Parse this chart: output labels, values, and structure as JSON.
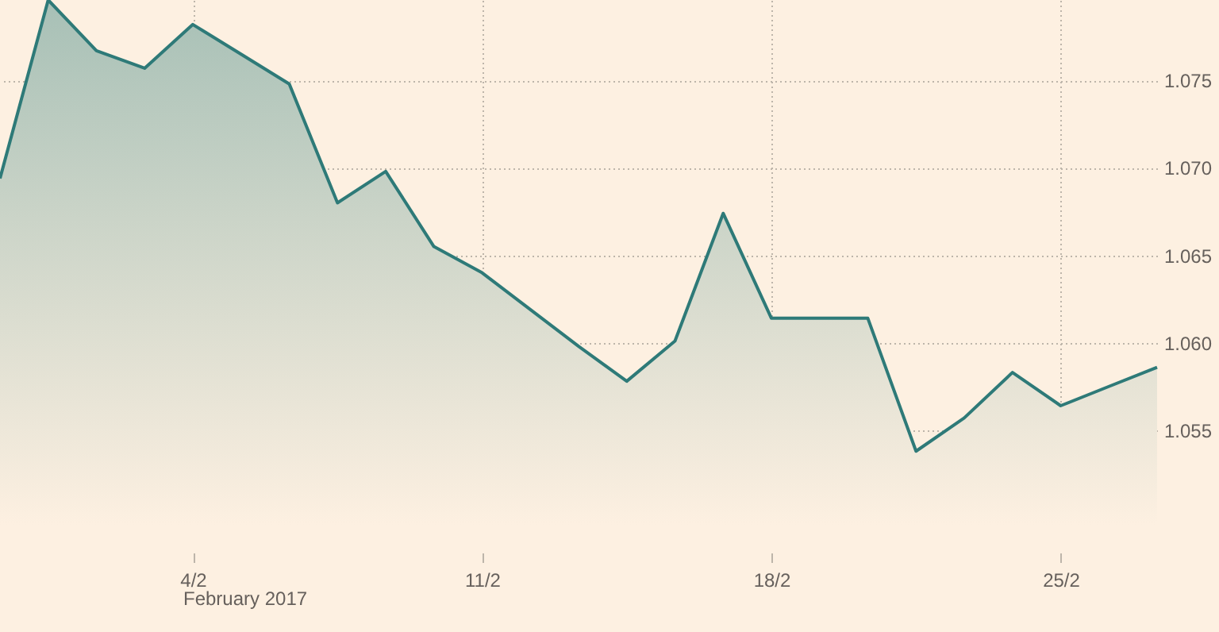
{
  "chart_data": {
    "type": "area",
    "categories": [
      null,
      null,
      null,
      null,
      "4/2",
      null,
      null,
      null,
      null,
      null,
      "11/2",
      null,
      null,
      null,
      null,
      null,
      "18/2",
      null,
      null,
      null,
      null,
      null,
      "25/2",
      null,
      null
    ],
    "series": [
      {
        "color": "#2e7a78",
        "values": [
          1.0694,
          1.0796,
          1.0767,
          1.0757,
          1.0782,
          1.0765,
          1.0748,
          1.068,
          1.0698,
          1.0655,
          1.064,
          1.0619,
          1.0598,
          1.0578,
          1.0601,
          1.0674,
          1.0614,
          1.0614,
          1.0614,
          1.0538,
          1.0557,
          1.0583,
          1.0564,
          1.0575,
          1.0586
        ]
      }
    ],
    "ylim": [
      1.048,
      1.0796
    ],
    "yticks": [
      1.055,
      {
        "value": 1.06,
        "label": "1.060"
      },
      1.065,
      {
        "value": 1.07,
        "label": "1.070"
      },
      1.075
    ],
    "grid": true,
    "annotations": [
      "February 2017"
    ]
  }
}
